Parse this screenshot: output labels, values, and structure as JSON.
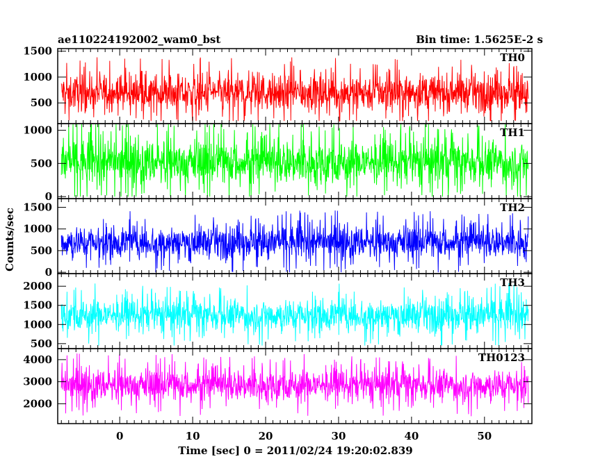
{
  "chart_data": {
    "type": "line",
    "title": "ae110224192002_wam0_bst",
    "subtitle": "Bin time: 1.5625E-2 s",
    "xlabel": "Time [sec] 0 = 2011/02/24 19:20:02.839",
    "ylabel": "Counts/sec",
    "xlim": [
      -8.5,
      56.5
    ],
    "x_data_range": [
      -8,
      56
    ],
    "xticks": [
      0,
      10,
      20,
      30,
      40,
      50
    ],
    "panels": [
      {
        "name": "TH0",
        "color": "#ff0000",
        "ylim": [
          100,
          1550
        ],
        "yticks": [
          500,
          1000,
          1500
        ],
        "mean": 700,
        "spread": 310,
        "min": 150,
        "max": 1540
      },
      {
        "name": "TH1",
        "color": "#00ff00",
        "ylim": [
          -30,
          1100
        ],
        "yticks": [
          0,
          500,
          1000
        ],
        "mean": 520,
        "spread": 300,
        "min": 0,
        "max": 1090
      },
      {
        "name": "TH2",
        "color": "#0000ff",
        "ylim": [
          -30,
          1700
        ],
        "yticks": [
          0,
          500,
          1000,
          1500
        ],
        "mean": 700,
        "spread": 330,
        "min": 0,
        "max": 1650
      },
      {
        "name": "TH3",
        "color": "#00ffff",
        "ylim": [
          370,
          2330
        ],
        "yticks": [
          500,
          1000,
          1500,
          2000
        ],
        "mean": 1250,
        "spread": 380,
        "min": 450,
        "max": 2300
      },
      {
        "name": "TH0123",
        "color": "#ff00ff",
        "ylim": [
          1100,
          4500
        ],
        "yticks": [
          2000,
          3000,
          4000
        ],
        "mean": 2850,
        "spread": 650,
        "min": 1200,
        "max": 4400
      }
    ]
  }
}
